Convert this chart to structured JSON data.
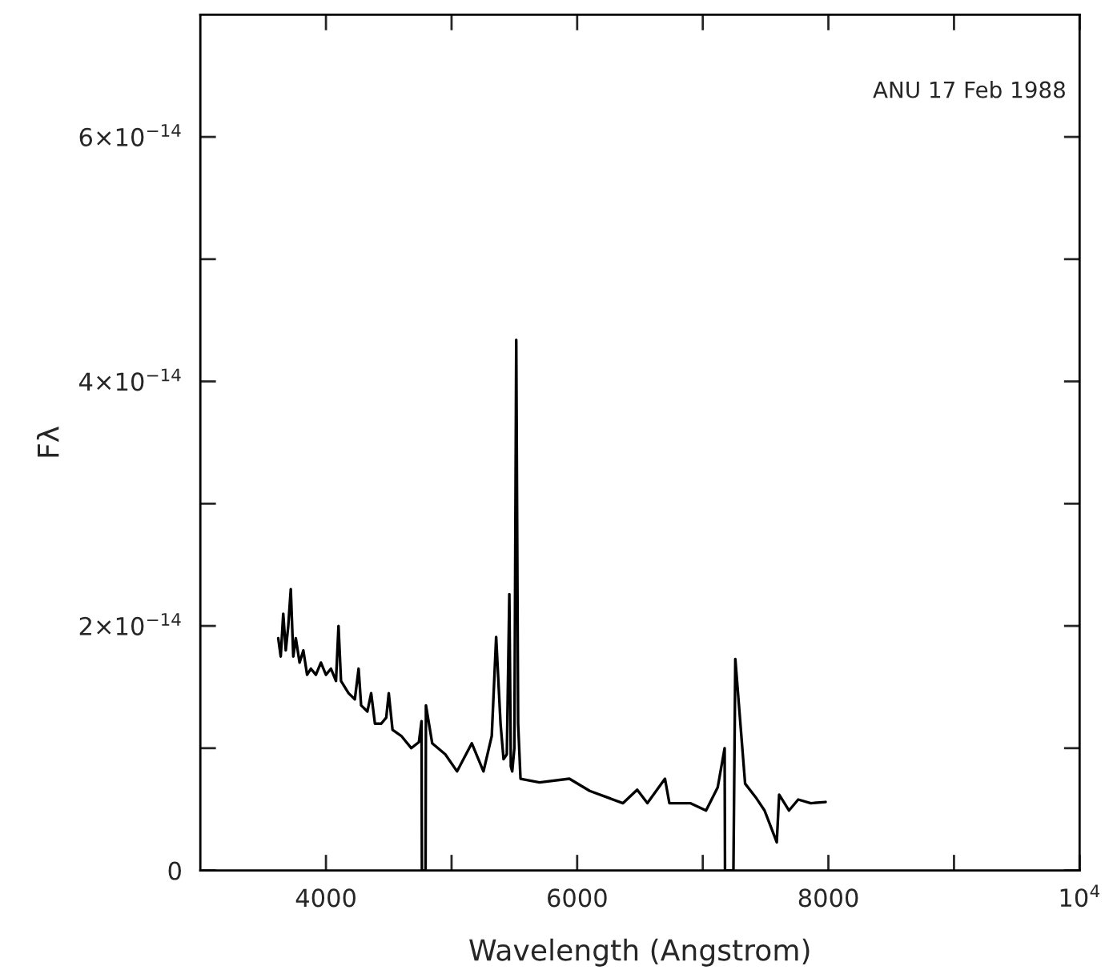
{
  "chart_data": {
    "type": "line",
    "xlabel": "Wavelength (Angstrom)",
    "ylabel": "Fλ",
    "annotations": [
      "ANU 17 Feb 1988"
    ],
    "xlim": [
      3000,
      10000
    ],
    "xticks": [
      4000,
      {
        "value": 5000,
        "label": null
      },
      6000,
      {
        "value": 7000,
        "label": null
      },
      8000,
      {
        "value": 9000,
        "label": null
      },
      {
        "value": 10000,
        "label": "10$^{4}$"
      }
    ],
    "ylim": [
      0,
      7e-14
    ],
    "yticks": [
      {
        "value": 0,
        "label": "0"
      },
      {
        "value": 1e-14,
        "label": null
      },
      {
        "value": 2e-14,
        "label": "2×10$^{−14}$"
      },
      {
        "value": 3e-14,
        "label": null
      },
      {
        "value": 4e-14,
        "label": "4×10$^{−14}$"
      },
      {
        "value": 5e-14,
        "label": null
      },
      {
        "value": 6e-14,
        "label": "6×10$^{−14}$"
      }
    ],
    "grid": false,
    "legend": false,
    "marker": "none",
    "line_style": "solid",
    "series": [
      {
        "color": "#000000",
        "x": [
          3620,
          3640,
          3660,
          3680,
          3700,
          3720,
          3740,
          3760,
          3790,
          3820,
          3850,
          3880,
          3920,
          3960,
          4000,
          4040,
          4080,
          4100,
          4120,
          4180,
          4230,
          4260,
          4280,
          4330,
          4360,
          4390,
          4440,
          4480,
          4500,
          4530,
          4600,
          4680,
          4740,
          4761,
          4764,
          4793,
          4796,
          4846,
          4950,
          5044,
          5161,
          5254,
          5320,
          5355,
          5390,
          5414,
          5440,
          5460,
          5472,
          5483,
          5500,
          5515,
          5530,
          5549,
          5700,
          5938,
          6100,
          6365,
          6478,
          6559,
          6699,
          6734,
          6900,
          7026,
          7119,
          7174,
          7177,
          7244,
          7259,
          7337,
          7420,
          7492,
          7589,
          7608,
          7686,
          7760,
          7860,
          7978
        ],
        "values": [
          1.9e-14,
          1.75e-14,
          2.1e-14,
          1.8e-14,
          2e-14,
          2.3e-14,
          1.75e-14,
          1.9e-14,
          1.7e-14,
          1.8e-14,
          1.6e-14,
          1.65e-14,
          1.6e-14,
          1.7e-14,
          1.6e-14,
          1.65e-14,
          1.55e-14,
          2e-14,
          1.55e-14,
          1.45e-14,
          1.4e-14,
          1.65e-14,
          1.35e-14,
          1.3e-14,
          1.45e-14,
          1.2e-14,
          1.2e-14,
          1.25e-14,
          1.45e-14,
          1.15e-14,
          1.1e-14,
          1e-14,
          1.05e-14,
          1.22e-14,
          0,
          0,
          1.35e-14,
          1.04e-14,
          9.5e-15,
          8.1e-15,
          1.04e-14,
          8.1e-15,
          1.1e-14,
          1.91e-14,
          1.2e-14,
          9.1e-15,
          9.5e-15,
          2.26e-14,
          8.5e-15,
          8.1e-15,
          1e-14,
          4.34e-14,
          1.2e-14,
          7.5e-15,
          7.2e-15,
          7.5e-15,
          6.5e-15,
          5.5e-15,
          6.6e-15,
          5.5e-15,
          7.5e-15,
          5.5e-15,
          5.5e-15,
          4.9e-15,
          6.8e-15,
          1e-14,
          0,
          0,
          1.73e-14,
          7.1e-15,
          6e-15,
          4.9e-15,
          2.3e-15,
          6.2e-15,
          4.9e-15,
          5.8e-15,
          5.5e-15,
          5.6e-15
        ]
      }
    ]
  }
}
